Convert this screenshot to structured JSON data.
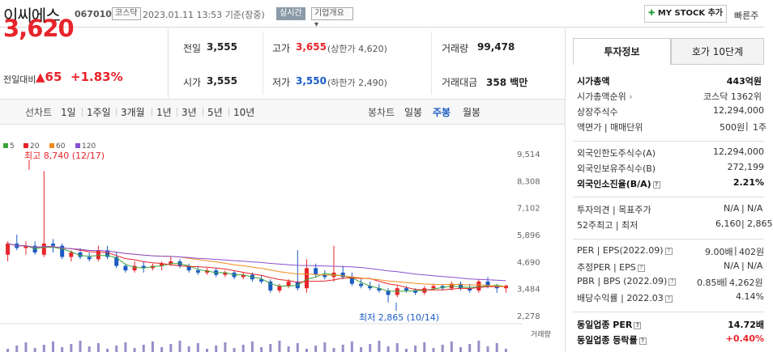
{
  "header": {
    "name": "이씨에스",
    "code": "067010",
    "market_badge": "코스닥",
    "datetime": "2023.01.11 13:53",
    "basis": "기준(장중)",
    "realtime_badge": "실시간",
    "company_overview": "기업개요",
    "mystock_button": "MY STOCK 추가",
    "quick_label": "빠른주"
  },
  "quote": {
    "price": "3,620",
    "change_label": "전일대비",
    "change_abs": "65",
    "change_pct": "+1.83%",
    "prev_close_label": "전일",
    "prev_close": "3,555",
    "open_label": "시가",
    "open": "3,555",
    "high_label": "고가",
    "high": "3,655",
    "upper_limit": "(상한가 4,620)",
    "low_label": "저가",
    "low": "3,550",
    "lower_limit": "(하한가 2,490)",
    "volume_label": "거래량",
    "volume": "99,478",
    "amount_label": "거래대금",
    "amount": "358 백만"
  },
  "period_tabs": {
    "line_label": "선차트",
    "line_items": [
      "1일",
      "1주일",
      "3개월",
      "1년",
      "3년",
      "5년",
      "10년"
    ],
    "candle_label": "봉차트",
    "candle_items": [
      "일봉",
      "주봉",
      "월봉"
    ],
    "active_candle": "주봉"
  },
  "chart_data": {
    "type": "candlestick",
    "legend": [
      {
        "name": "5",
        "color": "#3aa53a"
      },
      {
        "name": "20",
        "color": "#e7242a"
      },
      {
        "name": "60",
        "color": "#f08c1e"
      },
      {
        "name": "120",
        "color": "#8a4fd0"
      }
    ],
    "y_ticks": [
      9514,
      8308,
      7102,
      5896,
      4690,
      3484,
      2278
    ],
    "ylim": [
      2278,
      9514
    ],
    "high_annotation": "최고 8,740 (12/17)",
    "low_annotation": "최저 2,865 (10/14)",
    "volume_label": "거래량",
    "candles": [
      [
        5000,
        5600,
        4700,
        5500
      ],
      [
        5500,
        5900,
        5200,
        5300
      ],
      [
        5300,
        5600,
        5000,
        5400
      ],
      [
        5400,
        5600,
        5000,
        5100
      ],
      [
        5000,
        8740,
        4900,
        5500
      ],
      [
        5500,
        5700,
        5100,
        5400
      ],
      [
        5400,
        5500,
        4800,
        4900
      ],
      [
        4900,
        5200,
        4700,
        5100
      ],
      [
        5100,
        5300,
        4800,
        4900
      ],
      [
        4900,
        5100,
        4700,
        4800
      ],
      [
        4800,
        5400,
        4700,
        5200
      ],
      [
        5200,
        5400,
        4800,
        4900
      ],
      [
        4900,
        5100,
        4400,
        4500
      ],
      [
        4500,
        4600,
        4200,
        4300
      ],
      [
        4300,
        4700,
        4200,
        4500
      ],
      [
        4500,
        4700,
        4200,
        4400
      ],
      [
        4400,
        4600,
        4300,
        4500
      ],
      [
        4500,
        4700,
        4300,
        4600
      ],
      [
        4600,
        4900,
        4500,
        4700
      ],
      [
        4700,
        4800,
        4400,
        4500
      ],
      [
        4500,
        4600,
        4200,
        4300
      ],
      [
        4300,
        4500,
        4100,
        4200
      ],
      [
        4200,
        4400,
        4100,
        4300
      ],
      [
        4300,
        4400,
        4000,
        4100
      ],
      [
        4100,
        4300,
        4000,
        4200
      ],
      [
        4200,
        4300,
        3900,
        4000
      ],
      [
        4000,
        4200,
        3900,
        4100
      ],
      [
        4100,
        4200,
        3800,
        3900
      ],
      [
        3900,
        4100,
        3700,
        3800
      ],
      [
        3800,
        3900,
        3300,
        3400
      ],
      [
        3400,
        3700,
        3300,
        3600
      ],
      [
        3600,
        3900,
        3500,
        3800
      ],
      [
        3800,
        5200,
        3400,
        3500
      ],
      [
        3500,
        4800,
        3300,
        4400
      ],
      [
        4400,
        4600,
        4000,
        4100
      ],
      [
        4100,
        4300,
        3900,
        4000
      ],
      [
        4000,
        5400,
        3800,
        4200
      ],
      [
        4200,
        4500,
        3900,
        4000
      ],
      [
        4000,
        4200,
        3600,
        3700
      ],
      [
        3700,
        3900,
        3500,
        3600
      ],
      [
        3600,
        3800,
        3400,
        3500
      ],
      [
        3500,
        3700,
        3300,
        3400
      ],
      [
        3400,
        3500,
        2865,
        3200
      ],
      [
        3200,
        3600,
        3100,
        3500
      ],
      [
        3500,
        3600,
        3300,
        3400
      ],
      [
        3400,
        3500,
        3200,
        3300
      ],
      [
        3300,
        3600,
        3200,
        3500
      ],
      [
        3500,
        3700,
        3400,
        3600
      ],
      [
        3600,
        3700,
        3400,
        3500
      ],
      [
        3500,
        3800,
        3400,
        3700
      ],
      [
        3700,
        3800,
        3400,
        3500
      ],
      [
        3500,
        3700,
        3300,
        3400
      ],
      [
        3400,
        3900,
        3300,
        3800
      ],
      [
        3800,
        4000,
        3500,
        3600
      ],
      [
        3600,
        3700,
        3300,
        3500
      ],
      [
        3500,
        3655,
        3300,
        3620
      ]
    ]
  },
  "side_tabs": [
    "투자정보",
    "호가 10단계"
  ],
  "invest_info": {
    "market_cap_label": "시가총액",
    "market_cap": "443억원",
    "market_cap_rank_label": "시가총액순위",
    "market_cap_rank": "코스닥 1362위",
    "shares_label": "상장주식수",
    "shares": "12,294,000",
    "par_label": "액면가 | 매매단위",
    "par": "500원",
    "unit": "1주",
    "foreign_limit_label": "외국인한도주식수(A)",
    "foreign_limit": "12,294,000",
    "foreign_hold_label": "외국인보유주식수(B)",
    "foreign_hold": "272,199",
    "foreign_ratio_label": "외국인소진율(B/A)",
    "foreign_ratio": "2.21%",
    "opinion_label": "투자의견 | 목표주가",
    "opinion": "N/A",
    "target": "N/A",
    "week52_label": "52주최고 | 최저",
    "week52_high": "6,160",
    "week52_low": "2,865",
    "per_label": "PER | EPS(2022.09)",
    "per": "9.00배",
    "eps": "402원",
    "est_per_label": "추정PER | EPS",
    "est_per": "N/A",
    "est_eps": "N/A",
    "pbr_label": "PBR | BPS (2022.09)",
    "pbr": "0.85배",
    "bps": "4,262원",
    "div_label": "배당수익률",
    "div_date": "2022.03",
    "div": "4.14%",
    "sector_per_label": "동일업종 PER",
    "sector_per": "14.72배",
    "sector_chg_label": "동일업종 등락률",
    "sector_chg": "+0.40%"
  }
}
